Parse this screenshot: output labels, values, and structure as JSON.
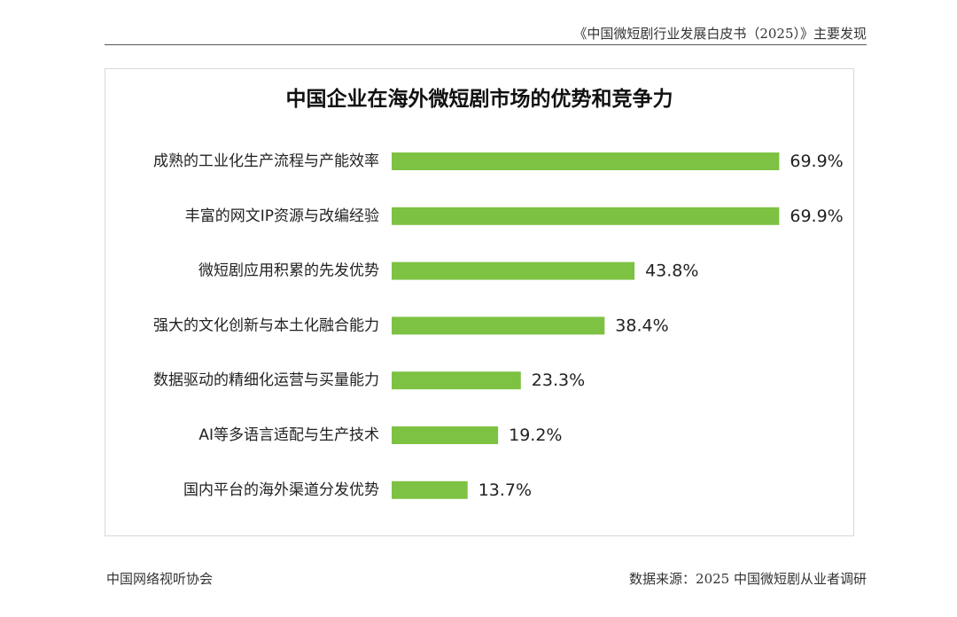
{
  "header": {
    "title": "《中国微短剧行业发展白皮书（2025）》主要发现"
  },
  "footer": {
    "organization": "中国网络视听协会",
    "source": "数据来源：2025 中国微短剧从业者调研"
  },
  "colors": {
    "bar": "#7dc243",
    "text": "#222222"
  },
  "chart_data": {
    "type": "bar",
    "orientation": "horizontal",
    "title": "中国企业在海外微短剧市场的优势和竞争力",
    "xlabel": "",
    "ylabel": "",
    "xlim": [
      0,
      70
    ],
    "grid": false,
    "legend": "none",
    "categories": [
      "成熟的工业化生产流程与产能效率",
      "丰富的网文IP资源与改编经验",
      "微短剧应用积累的先发优势",
      "强大的文化创新与本土化融合能力",
      "数据驱动的精细化运营与买量能力",
      "AI等多语言适配与生产技术",
      "国内平台的海外渠道分发优势"
    ],
    "values": [
      69.9,
      69.9,
      43.8,
      38.4,
      23.3,
      19.2,
      13.7
    ],
    "value_labels": [
      "69.9%",
      "69.9%",
      "43.8%",
      "38.4%",
      "23.3%",
      "19.2%",
      "13.7%"
    ]
  }
}
